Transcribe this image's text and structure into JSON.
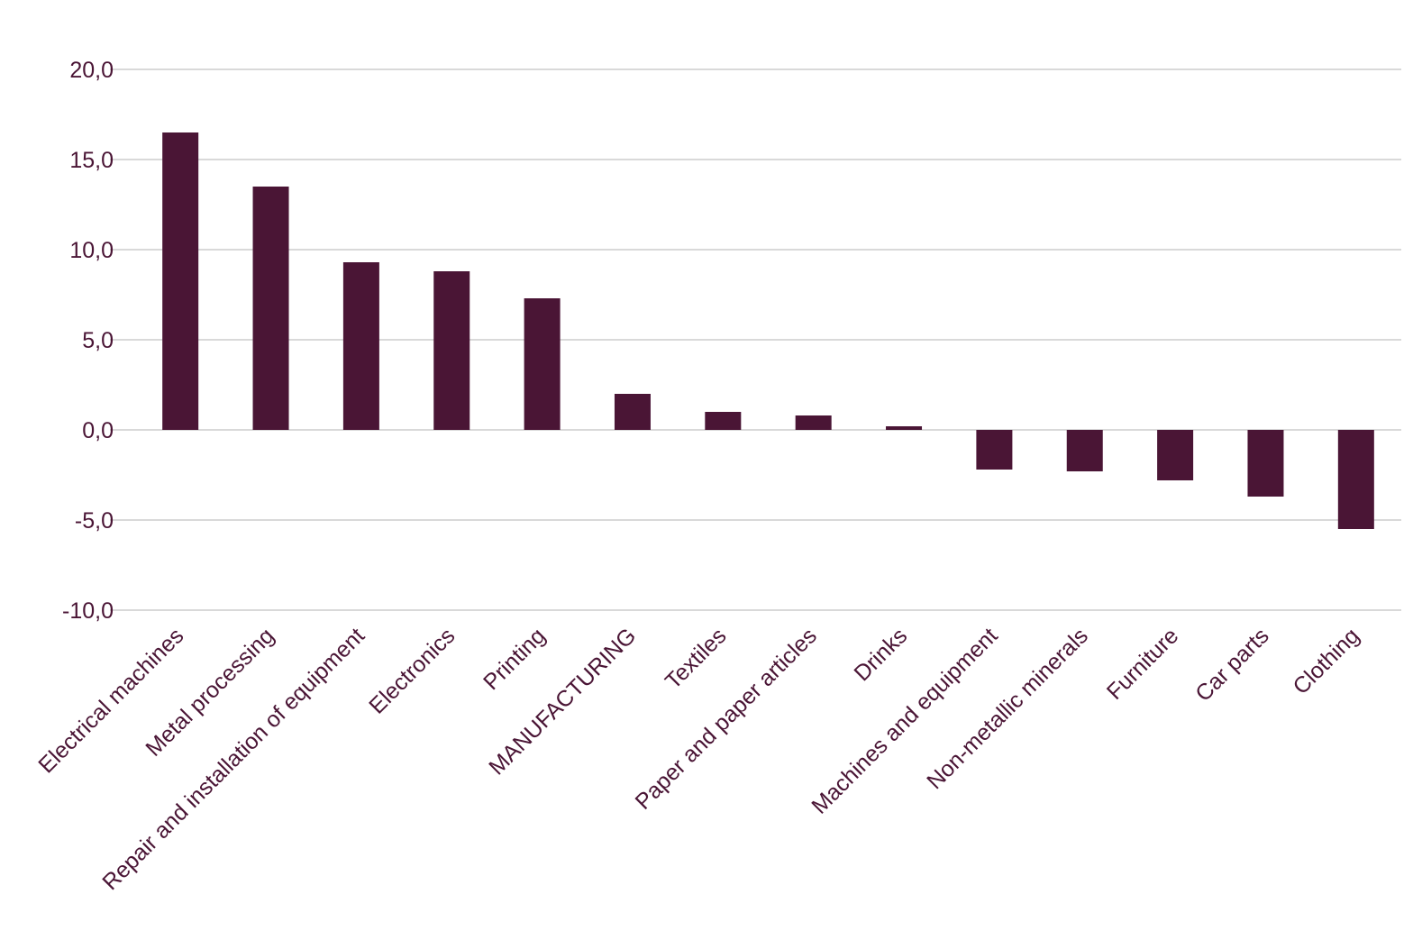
{
  "chart_data": {
    "type": "bar",
    "categories": [
      "Electrical machines",
      "Metal processing",
      "Repair and installation of equipment",
      "Electronics",
      "Printing",
      "MANUFACTURING",
      "Textiles",
      "Paper and paper articles",
      "Drinks",
      "Machines and equipment",
      "Non-metallic minerals",
      "Furniture",
      "Car parts",
      "Clothing"
    ],
    "values": [
      16.5,
      13.5,
      9.3,
      8.8,
      7.3,
      2.0,
      1.0,
      0.8,
      0.2,
      -2.2,
      -2.3,
      -2.8,
      -3.7,
      -5.5
    ],
    "ylim": [
      -10,
      20
    ],
    "yticks": [
      20,
      15,
      10,
      5,
      0,
      -5,
      -10
    ],
    "ytick_labels": [
      "20,0",
      "15,0",
      "10,0",
      "5,0",
      "0,0",
      "-5,0",
      "-10,0"
    ],
    "title": "",
    "xlabel": "",
    "ylabel": "",
    "grid": true,
    "bar_color": "#4a1535",
    "text_color": "#4a1535",
    "grid_color": "#d9d9d9"
  }
}
